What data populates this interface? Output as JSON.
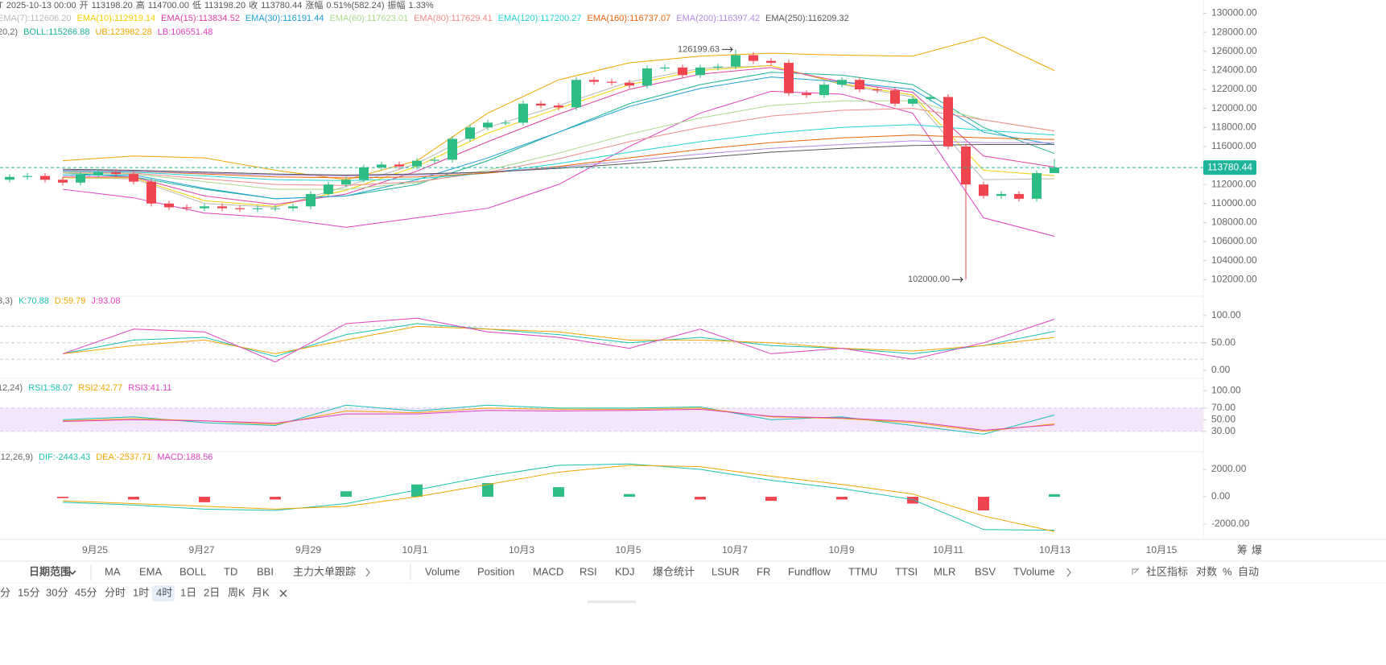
{
  "header": {
    "row": [
      "T",
      "2025-10-13 00:00",
      "开",
      "113198.20",
      "高",
      "114700.00",
      "低",
      "113198.20",
      "收",
      "113780.44",
      "涨幅",
      "0.51%(582.24)",
      "振幅",
      "1.33%"
    ]
  },
  "side_buttons": [
    "筹",
    "爆"
  ],
  "toolbar": {
    "date_range": "日期范围",
    "main": [
      {
        "label": "MA"
      },
      {
        "label": "EMA",
        "active": true
      },
      {
        "label": "BOLL",
        "active": true
      },
      {
        "label": "TD"
      },
      {
        "label": "BBI"
      },
      {
        "label": "主力大单跟踪"
      }
    ],
    "sub": [
      {
        "label": "Volume"
      },
      {
        "label": "Position"
      },
      {
        "label": "MACD",
        "active": true
      },
      {
        "label": "RSI",
        "active": true
      },
      {
        "label": "KDJ",
        "active": true
      },
      {
        "label": "爆仓统计"
      },
      {
        "label": "LSUR"
      },
      {
        "label": "FR"
      },
      {
        "label": "Fundflow"
      },
      {
        "label": "TTMU"
      },
      {
        "label": "TTSI"
      },
      {
        "label": "MLR"
      },
      {
        "label": "BSV"
      },
      {
        "label": "TVolume"
      }
    ],
    "right": [
      {
        "label": "社区指标"
      },
      {
        "label": "对数"
      },
      {
        "label": "%"
      },
      {
        "label": "自动",
        "active": true
      }
    ],
    "intervals": [
      {
        "label": "分"
      },
      {
        "label": "15分"
      },
      {
        "label": "30分"
      },
      {
        "label": "45分"
      },
      {
        "label": "分时"
      },
      {
        "label": "1时"
      },
      {
        "label": "4时",
        "selected": true
      },
      {
        "label": "1日"
      },
      {
        "label": "2日"
      },
      {
        "label": "周K"
      },
      {
        "label": "月K"
      }
    ]
  },
  "chart_data": [
    {
      "type": "candlestick",
      "up_color": "#2ebd85",
      "down_color": "#f0454f",
      "open": [
        112500,
        112800,
        112900,
        112500,
        112200,
        113000,
        113300,
        113100,
        112300,
        110000,
        109600,
        109500,
        109700,
        109500,
        109400,
        109500,
        109500,
        109700,
        111000,
        112000,
        112500,
        113800,
        114100,
        113900,
        114500,
        114600,
        116800,
        118000,
        118500,
        118500,
        120500,
        120300,
        120100,
        123000,
        122800,
        122700,
        122400,
        124200,
        124300,
        123500,
        124300,
        124400,
        125600,
        125000,
        124800,
        121600,
        121400,
        122500,
        123000,
        122000,
        121900,
        120500,
        121000,
        121200,
        116000,
        112000,
        110800,
        111000,
        110500,
        113198.2
      ],
      "high": [
        113100,
        113200,
        113200,
        112800,
        113300,
        113600,
        113600,
        113400,
        112600,
        110300,
        109900,
        110000,
        110000,
        109800,
        109800,
        109800,
        110000,
        111300,
        112300,
        112800,
        114100,
        114400,
        114400,
        114800,
        114900,
        117100,
        118300,
        118800,
        118800,
        120800,
        120800,
        120600,
        123300,
        123300,
        123100,
        123000,
        124500,
        124600,
        124600,
        124600,
        124700,
        126199.63,
        125900,
        125300,
        125100,
        121900,
        122800,
        123300,
        123300,
        122300,
        122200,
        121300,
        121500,
        121500,
        116300,
        112300,
        111300,
        111300,
        113500,
        114700
      ],
      "low": [
        112200,
        112500,
        112200,
        111900,
        111900,
        112700,
        112800,
        112000,
        109700,
        109300,
        109200,
        109200,
        109200,
        109100,
        109100,
        109200,
        109200,
        109400,
        110700,
        111700,
        112200,
        113500,
        113600,
        113600,
        114200,
        114300,
        116500,
        117700,
        118200,
        118200,
        120000,
        119800,
        119800,
        122500,
        122400,
        122100,
        122100,
        123900,
        123200,
        123200,
        124000,
        124100,
        124700,
        124500,
        121300,
        121100,
        121100,
        122200,
        121700,
        121600,
        120200,
        120200,
        120700,
        115700,
        102000,
        110500,
        110500,
        110200,
        110200,
        113198.2
      ],
      "close": [
        112800,
        112900,
        112500,
        112200,
        113000,
        113300,
        113100,
        112300,
        110000,
        109600,
        109500,
        109700,
        109500,
        109400,
        109500,
        109500,
        109700,
        111000,
        112000,
        112500,
        113800,
        114100,
        113900,
        114500,
        114600,
        116800,
        118000,
        118500,
        118500,
        120500,
        120300,
        120100,
        123000,
        122800,
        122700,
        122400,
        124200,
        124300,
        123500,
        124300,
        124400,
        125600,
        125000,
        124800,
        121600,
        121400,
        122500,
        123000,
        122000,
        121900,
        120500,
        121000,
        121200,
        116000,
        112000,
        110800,
        111000,
        110500,
        113198.2,
        113780.44
      ],
      "ylim": [
        100500,
        131400
      ],
      "yticks": [
        {
          "value": 102000,
          "label": "102000.00"
        },
        {
          "value": 104000,
          "label": "104000.00"
        },
        {
          "value": 106000,
          "label": "106000.00"
        },
        {
          "value": 108000,
          "label": "108000.00"
        },
        {
          "value": 110000,
          "label": "110000.00"
        },
        {
          "value": 112000,
          "label": "112000.00"
        },
        {
          "value": 114000,
          "label": "114000.00"
        },
        {
          "value": 116000,
          "label": "116000.00"
        },
        {
          "value": 118000,
          "label": "118000.00"
        },
        {
          "value": 120000,
          "label": "120000.00"
        },
        {
          "value": 122000,
          "label": "122000.00"
        },
        {
          "value": 124000,
          "label": "124000.00"
        },
        {
          "value": 126000,
          "label": "126000.00"
        },
        {
          "value": 128000,
          "label": "128000.00"
        },
        {
          "value": 130000,
          "label": "130000.00"
        }
      ],
      "xticks": [
        "9月25",
        "9月27",
        "9月29",
        "10月1",
        "10月3",
        "10月5",
        "10月7",
        "10月9",
        "10月11",
        "10月13",
        "10月15"
      ],
      "current_price": {
        "value": 113780.44,
        "label": "113780.44",
        "color": "#1fb59a"
      },
      "annotations": [
        {
          "value": 126199.63,
          "label": "126199.63"
        },
        {
          "value": 102000,
          "label": "102000.00"
        }
      ],
      "series": [
        {
          "name": "EMA(7):112606.20",
          "color": "#b8b8b8",
          "values": [
            112700,
            112600,
            110000,
            109600,
            111800,
            114200,
            118000,
            120300,
            122800,
            124200,
            124500,
            122500,
            121200,
            112500,
            112606.2
          ]
        },
        {
          "name": "EMA(10):112919.14",
          "color": "#f2cf00",
          "values": [
            112700,
            112700,
            110300,
            109700,
            111400,
            113900,
            117400,
            120000,
            122500,
            124000,
            124500,
            122600,
            121400,
            113500,
            112919.14
          ]
        },
        {
          "name": "EMA(15):113834.52",
          "color": "#e040a0",
          "values": [
            112800,
            112800,
            110800,
            109900,
            111000,
            113400,
            116500,
            119400,
            122000,
            123600,
            124300,
            122800,
            121700,
            115000,
            113834.52
          ]
        },
        {
          "name": "EMA(30):116191.44",
          "color": "#1e9fd8",
          "values": [
            113000,
            113000,
            111600,
            110500,
            110800,
            112500,
            114800,
            117500,
            120200,
            122100,
            123300,
            122800,
            122000,
            117500,
            116191.44
          ]
        },
        {
          "name": "EMA(60):117623.01",
          "color": "#a8d88a",
          "values": [
            113200,
            113100,
            112300,
            111500,
            111500,
            112200,
            113500,
            115300,
            117300,
            119000,
            120300,
            120800,
            120800,
            118800,
            117623.01
          ]
        },
        {
          "name": "EMA(80):117629.41",
          "color": "#f08a8a",
          "values": [
            113300,
            113200,
            112600,
            112000,
            111900,
            112300,
            113300,
            114700,
            116500,
            118000,
            119200,
            119800,
            120000,
            118800,
            117629.41
          ]
        },
        {
          "name": "EMA(120):117200.27",
          "color": "#22d3d3",
          "values": [
            113400,
            113300,
            112900,
            112500,
            112400,
            112600,
            113200,
            114200,
            115400,
            116500,
            117400,
            118000,
            118300,
            117700,
            117200.27
          ]
        },
        {
          "name": "EMA(160):116737.07",
          "color": "#e8640a",
          "values": [
            113500,
            113400,
            113100,
            112800,
            112700,
            112800,
            113200,
            113900,
            114800,
            115700,
            116400,
            116900,
            117200,
            116900,
            116737.07
          ]
        },
        {
          "name": "EMA(200):116397.42",
          "color": "#b088e0",
          "values": [
            113500,
            113400,
            113200,
            113000,
            112900,
            113000,
            113300,
            113800,
            114500,
            115200,
            115800,
            116200,
            116600,
            116400,
            116397.42
          ]
        },
        {
          "name": "EMA(250):116209.32",
          "color": "#555555",
          "values": [
            113600,
            113500,
            113300,
            113100,
            113000,
            113100,
            113300,
            113700,
            114200,
            114800,
            115400,
            115800,
            116100,
            116200,
            116209.32
          ]
        }
      ],
      "boll": {
        "params": "20,2)",
        "series": [
          {
            "name": "BOLL:115266.88",
            "color": "#19b394",
            "values": [
              113200,
              112800,
              111500,
              110500,
              110800,
              112000,
              114500,
              117500,
              120500,
              122500,
              123800,
              123500,
              122500,
              118000,
              115266.88
            ]
          },
          {
            "name": "UB:123982.28",
            "color": "#f0a500",
            "values": [
              114500,
              115000,
              114800,
              113500,
              112500,
              114500,
              119500,
              123000,
              124800,
              125500,
              125800,
              125600,
              125500,
              127500,
              123982.28
            ]
          },
          {
            "name": "LB:106551.48",
            "color": "#e040c0",
            "values": [
              111500,
              110600,
              109000,
              108500,
              107500,
              108500,
              109500,
              112000,
              116000,
              119500,
              121800,
              121500,
              119500,
              108500,
              106551.48
            ]
          }
        ]
      }
    },
    {
      "type": "line",
      "title": "3,3)",
      "ylim": [
        -12,
        132
      ],
      "yticks": [
        {
          "value": 0,
          "label": "0.00"
        },
        {
          "value": 50,
          "label": "50.00"
        },
        {
          "value": 100,
          "label": "100.00"
        }
      ],
      "ref_lines": [
        20,
        50,
        80
      ],
      "series": [
        {
          "name": "K:70.88",
          "color": "#19c0b0",
          "values": [
            30,
            55,
            60,
            25,
            65,
            85,
            75,
            65,
            50,
            60,
            45,
            40,
            30,
            45,
            70.88
          ]
        },
        {
          "name": "D:59.79",
          "color": "#f0a500",
          "values": [
            30,
            45,
            55,
            30,
            55,
            80,
            75,
            70,
            55,
            55,
            50,
            40,
            35,
            45,
            59.79
          ]
        },
        {
          "name": "J:93.08",
          "color": "#e040c0",
          "values": [
            30,
            75,
            70,
            15,
            85,
            95,
            70,
            60,
            40,
            75,
            30,
            40,
            20,
            50,
            93.08
          ]
        }
      ]
    },
    {
      "type": "line",
      "title": "12,24)",
      "ylim": [
        2,
        110
      ],
      "yticks": [
        {
          "value": 30,
          "label": "30.00"
        },
        {
          "value": 50,
          "label": "50.00"
        },
        {
          "value": 70,
          "label": "70.00"
        },
        {
          "value": 100,
          "label": "100.00"
        }
      ],
      "band": [
        30,
        70
      ],
      "band_color": "#f3e6fb",
      "series": [
        {
          "name": "RSI1:58.07",
          "color": "#19c0b0",
          "values": [
            50,
            55,
            45,
            40,
            75,
            65,
            75,
            70,
            70,
            72,
            50,
            55,
            40,
            25,
            58.07
          ]
        },
        {
          "name": "RSI2:42.77",
          "color": "#f0a500",
          "values": [
            48,
            52,
            48,
            42,
            65,
            62,
            70,
            68,
            68,
            70,
            55,
            52,
            45,
            30,
            42.77
          ]
        },
        {
          "name": "RSI3:41.11",
          "color": "#e040c0",
          "values": [
            47,
            50,
            48,
            44,
            60,
            60,
            66,
            65,
            66,
            68,
            56,
            53,
            47,
            32,
            41.11
          ]
        }
      ]
    },
    {
      "type": "macd",
      "title": "(12,26,9)",
      "ylim": [
        -3000,
        2650
      ],
      "yticks": [
        {
          "value": -2000,
          "label": "-2000.00"
        },
        {
          "value": 0,
          "label": "0.00"
        },
        {
          "value": 2000,
          "label": "2000.00"
        }
      ],
      "series": [
        {
          "name": "DIF:-2443.43",
          "color": "#19c0b0",
          "values": [
            -400,
            -600,
            -900,
            -1000,
            -500,
            500,
            1500,
            2300,
            2400,
            2000,
            1200,
            600,
            -200,
            -2400,
            -2443.43
          ]
        },
        {
          "name": "DEA:-2537.71",
          "color": "#f0a500",
          "values": [
            -300,
            -500,
            -700,
            -900,
            -700,
            0,
            900,
            1800,
            2300,
            2200,
            1500,
            900,
            200,
            -1400,
            -2537.71
          ]
        }
      ],
      "histogram": {
        "name": "MACD:188.56",
        "color": "#e040c0",
        "up_color": "#2ebd85",
        "down_color": "#f0454f",
        "values": [
          -100,
          -200,
          -400,
          -200,
          400,
          900,
          1000,
          700,
          200,
          -200,
          -300,
          -200,
          -500,
          -1000,
          188.56
        ]
      }
    }
  ]
}
